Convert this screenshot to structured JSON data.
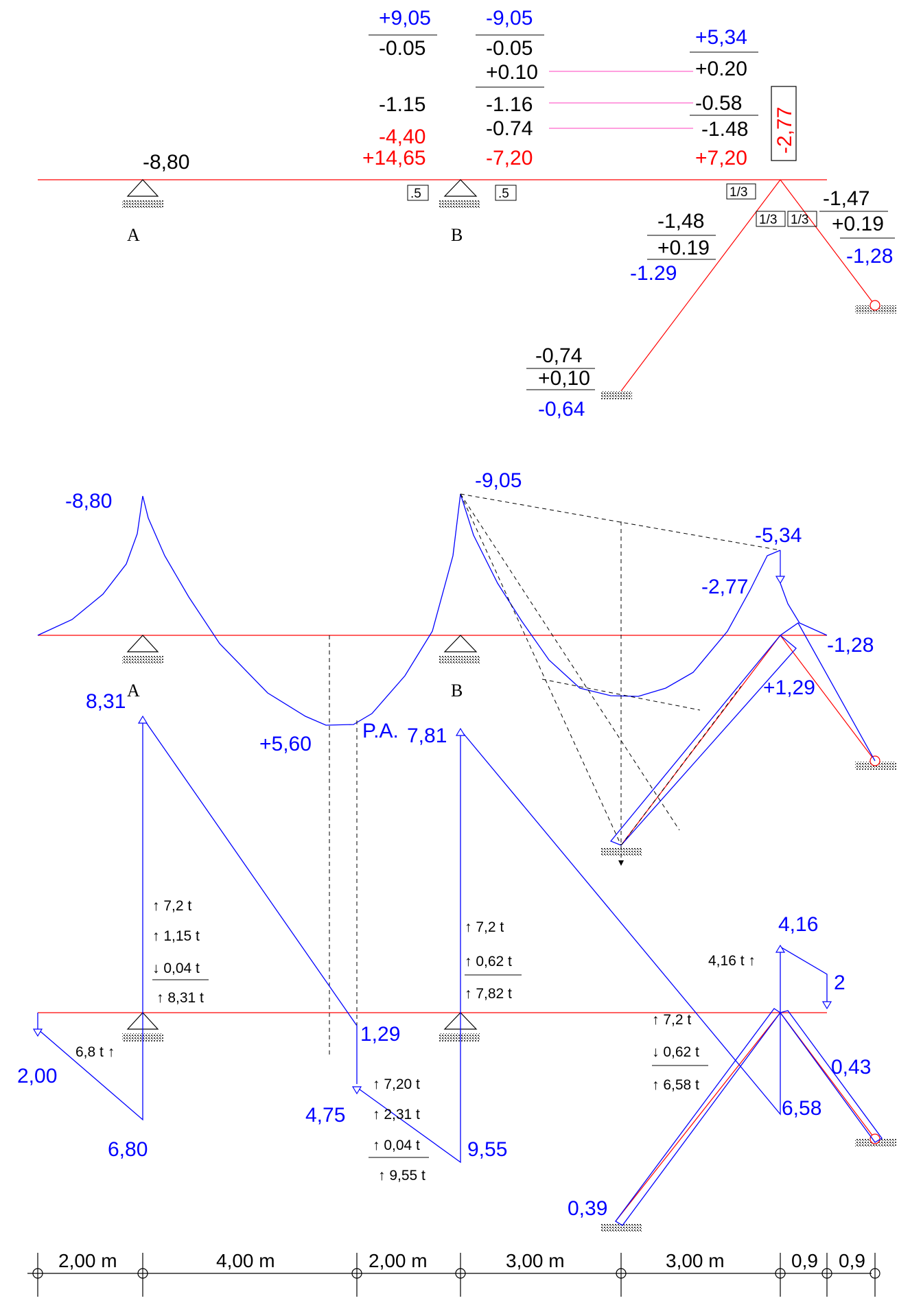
{
  "colors": {
    "beam": "#ff0000",
    "diagram": "#0000ff",
    "text": "#000000",
    "dimension_line": "#ff66cc"
  },
  "support_labels": {
    "a": "A",
    "b": "B",
    "a2": "A",
    "b2": "B"
  },
  "distribution_table": {
    "b_left": {
      "top": "+9,05",
      "carry": "-0.05",
      "mid": "-1.15",
      "red1": "-4,40",
      "red2": "+14,65"
    },
    "b_right": {
      "top": "-9,05",
      "r1": "-0.05",
      "r2": "+0.10",
      "r3": "-1.16",
      "r4": "-0.74",
      "red": "-7,20"
    },
    "c_left": {
      "top": "+5,34",
      "r1": "+0.20",
      "r2": "-0.58",
      "r3": "-1.48",
      "red": "+7,20"
    },
    "a_moment": "-8,80",
    "boxed": "-2,77",
    "factors": {
      "b_left": ".5",
      "b_right": ".5",
      "c_beam": "1/3",
      "c_col1": "1/3",
      "c_col2": "1/3"
    },
    "col1_top": {
      "r1": "-1,48",
      "r2": "+0.19",
      "res": "-1.29"
    },
    "col2_top": {
      "r1": "-1,47",
      "r2": "+0.19",
      "res": "-1,28"
    },
    "col1_bottom": {
      "r1": "-0,74",
      "r2": "+0,10",
      "res": "-0,64"
    }
  },
  "moment_diagram": {
    "a": "-8,80",
    "b": "-9,05",
    "c": "-5,34",
    "c_beam": "-2,77",
    "col2": "-1,28",
    "col1": "+1,29",
    "span": "+5,60",
    "pa": "P.A."
  },
  "shear_diagram": {
    "v1": "8,31",
    "v2": "2,00",
    "v3": "6,80",
    "v4": "1,29",
    "v5": "4,75",
    "v6": "7,81",
    "v7": "9,55",
    "v8": "4,16",
    "v9": "2",
    "v10": "0,43",
    "v11": "6,58",
    "v12": "0,39",
    "ra": [
      "↑ 7,2 t",
      "↑ 1,15 t",
      "↓ 0,04 t",
      "↑ 8,31 t"
    ],
    "ra_left": "6,8 t ↑",
    "rb_left": [
      "↑ 7,20 t",
      "↑ 2,31 t",
      "↑ 0,04 t",
      "↑ 9,55 t"
    ],
    "rb_right": [
      "↑ 7,2 t",
      "↑ 0,62 t",
      "↑ 7,82 t"
    ],
    "rc": [
      "↑ 7,2 t",
      "↓ 0,62 t",
      "↑ 6,58 t"
    ],
    "rc_top": "4,16 t ↑"
  },
  "dimensions": [
    "2,00 m",
    "4,00 m",
    "2,00 m",
    "3,00 m",
    "3,00 m",
    "0,9",
    "0,9"
  ]
}
